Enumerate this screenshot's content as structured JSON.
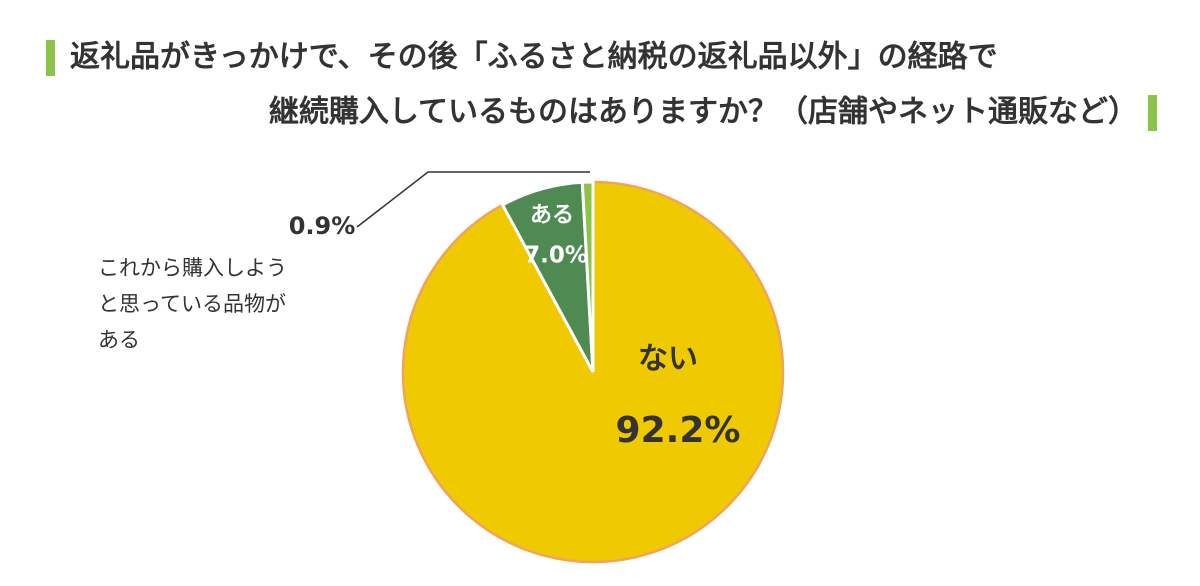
{
  "chart_data": {
    "type": "pie",
    "title": [
      "返礼品がきっかけで、その後「ふるさと納税の返礼品以外」の経路で",
      "継続購入しているものはありますか？（店舗やネット通販など）"
    ],
    "categories": [
      "ない",
      "ある",
      "これから購入しようと思っている品物がある"
    ],
    "values": [
      92.2,
      7.0,
      0.9
    ],
    "value_labels": [
      "92.2%",
      "7.0%",
      "0.9%"
    ],
    "colors": [
      "#efca00",
      "#4e8a52",
      "#8cc34b"
    ]
  }
}
